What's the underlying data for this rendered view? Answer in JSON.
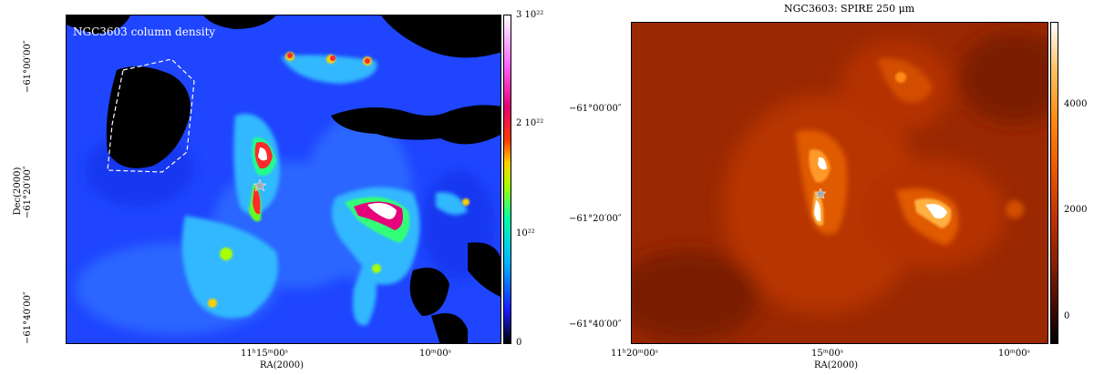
{
  "left": {
    "title": "NGC3603 column density",
    "ylabel": "Dec(2000)",
    "xlabel": "RA(2000)",
    "dec_ticks": [
      "−61°00′00″",
      "−61°20′00″",
      "−61°40′00″"
    ],
    "ra_ticks": [
      {
        "main": "11ʰ15ᵐ00ˢ"
      },
      {
        "main": "10ᵐ00ˢ"
      }
    ],
    "colorbar_labels": [
      "3 10²²",
      "2 10²²",
      "10²²",
      "0"
    ],
    "colorbar_colors": [
      "#000000",
      "#1a1aff",
      "#00b7ff",
      "#00ffaa",
      "#a6ff00",
      "#ffd000",
      "#ff3a00",
      "#e60073",
      "#ff66ff",
      "#ffffff"
    ]
  },
  "right": {
    "title": "NGC3603: SPIRE 250 μm",
    "xlabel": "RA(2000)",
    "dec_ticks": [
      "−61°00′00″",
      "−61°20′00″",
      "−61°40′00″"
    ],
    "ra_ticks": [
      "11ʰ20ᵐ00ˢ",
      "15ᵐ00ˢ",
      "10ᵐ00ˢ"
    ],
    "colorbar_labels": [
      "4000",
      "2000",
      "0"
    ],
    "colorbar_colors": [
      "#000000",
      "#3a0a00",
      "#8a1f00",
      "#c23500",
      "#ee5a00",
      "#ff8a14",
      "#ffc060",
      "#ffffff"
    ]
  }
}
